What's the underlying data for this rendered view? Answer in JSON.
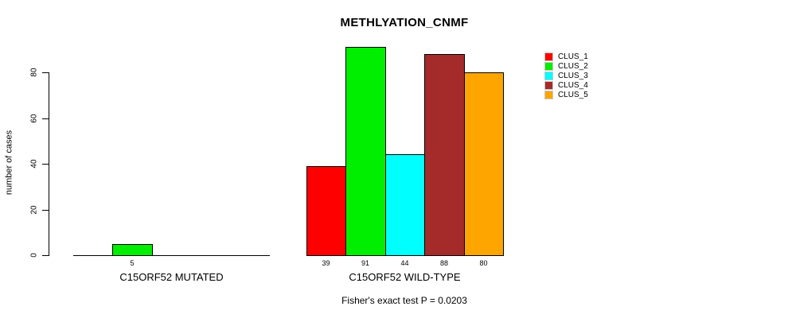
{
  "chart_data": {
    "type": "bar",
    "title": "METHLYATION_CNMF",
    "ylabel": "number of cases",
    "xlabel": "",
    "ylim": [
      0,
      91
    ],
    "yticks": [
      0,
      20,
      40,
      60,
      80
    ],
    "grid": false,
    "legend_position": "right-inside",
    "annotation": "Fisher's exact test P = 0.0203",
    "categories": [
      "C15ORF52 MUTATED",
      "C15ORF52 WILD-TYPE"
    ],
    "series": [
      {
        "name": "CLUS_1",
        "color": "#ff0000",
        "values": [
          0,
          39
        ]
      },
      {
        "name": "CLUS_2",
        "color": "#00ee00",
        "values": [
          5,
          91
        ]
      },
      {
        "name": "CLUS_3",
        "color": "#00ffff",
        "values": [
          0,
          44
        ]
      },
      {
        "name": "CLUS_4",
        "color": "#a52a2a",
        "values": [
          0,
          88
        ]
      },
      {
        "name": "CLUS_5",
        "color": "#ffa500",
        "values": [
          0,
          80
        ]
      }
    ],
    "bar_value_labels": [
      [
        "",
        "5",
        "",
        "",
        ""
      ],
      [
        "39",
        "91",
        "44",
        "88",
        "80"
      ]
    ]
  }
}
